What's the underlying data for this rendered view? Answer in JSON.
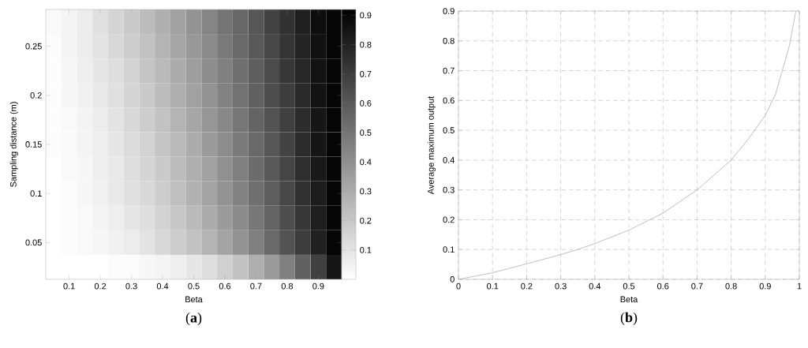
{
  "chart_data": [
    {
      "type": "heatmap",
      "title": "(**a**)",
      "xlabel": "Beta",
      "ylabel": "Sampling distance (m)",
      "categories": [
        null,
        "0.1",
        null,
        "0.2",
        null,
        "0.3",
        null,
        "0.4",
        null,
        "0.5",
        null,
        "0.6",
        null,
        "0.7",
        null,
        "0.8",
        null,
        "0.9",
        null
      ],
      "y_categories": [
        null,
        "0.25",
        null,
        "0.2",
        null,
        "0.15",
        null,
        "0.1",
        null,
        "0.05",
        null
      ],
      "cells": [
        [
          0.02,
          0.04,
          0.07,
          0.11,
          0.15,
          0.19,
          0.24,
          0.29,
          0.34,
          0.39,
          0.44,
          0.5,
          0.55,
          0.61,
          0.68,
          0.74,
          0.8,
          0.87,
          0.9
        ],
        [
          0.01,
          0.04,
          0.07,
          0.1,
          0.14,
          0.18,
          0.22,
          0.27,
          0.32,
          0.37,
          0.42,
          0.48,
          0.54,
          0.6,
          0.66,
          0.73,
          0.79,
          0.86,
          0.9
        ],
        [
          0.01,
          0.03,
          0.06,
          0.09,
          0.12,
          0.16,
          0.21,
          0.25,
          0.3,
          0.35,
          0.41,
          0.46,
          0.52,
          0.58,
          0.65,
          0.72,
          0.78,
          0.85,
          0.9
        ],
        [
          0.01,
          0.03,
          0.05,
          0.08,
          0.11,
          0.15,
          0.19,
          0.24,
          0.29,
          0.34,
          0.39,
          0.45,
          0.51,
          0.57,
          0.64,
          0.7,
          0.77,
          0.85,
          0.9
        ],
        [
          0.01,
          0.02,
          0.04,
          0.07,
          0.1,
          0.14,
          0.18,
          0.22,
          0.27,
          0.32,
          0.38,
          0.43,
          0.49,
          0.56,
          0.62,
          0.69,
          0.76,
          0.84,
          0.9
        ],
        [
          0.01,
          0.02,
          0.04,
          0.06,
          0.09,
          0.13,
          0.16,
          0.21,
          0.25,
          0.3,
          0.36,
          0.41,
          0.48,
          0.54,
          0.61,
          0.68,
          0.76,
          0.84,
          0.9
        ],
        [
          0,
          0.02,
          0.03,
          0.06,
          0.08,
          0.12,
          0.15,
          0.19,
          0.24,
          0.29,
          0.34,
          0.4,
          0.46,
          0.53,
          0.6,
          0.67,
          0.75,
          0.83,
          0.9
        ],
        [
          0,
          0.01,
          0.03,
          0.05,
          0.08,
          0.11,
          0.14,
          0.18,
          0.23,
          0.28,
          0.33,
          0.39,
          0.45,
          0.52,
          0.58,
          0.66,
          0.74,
          0.82,
          0.9
        ],
        [
          0,
          0.01,
          0.02,
          0.04,
          0.06,
          0.09,
          0.12,
          0.16,
          0.2,
          0.25,
          0.3,
          0.36,
          0.42,
          0.49,
          0.56,
          0.64,
          0.72,
          0.81,
          0.9
        ],
        [
          0,
          0.01,
          0.02,
          0.03,
          0.05,
          0.07,
          0.1,
          0.14,
          0.18,
          0.22,
          0.27,
          0.33,
          0.39,
          0.46,
          0.54,
          0.62,
          0.7,
          0.8,
          0.9
        ],
        [
          0,
          0,
          0,
          0,
          0.01,
          0.01,
          0.03,
          0.04,
          0.06,
          0.09,
          0.12,
          0.17,
          0.22,
          0.29,
          0.36,
          0.46,
          0.57,
          0.69,
          0.84
        ]
      ],
      "clim": [
        0,
        0.92
      ],
      "cticks": [
        0.1,
        0.2,
        0.3,
        0.4,
        0.5,
        0.6,
        0.7,
        0.8,
        0.9
      ]
    },
    {
      "type": "line",
      "title": "(**b**)",
      "xlabel": "Beta",
      "ylabel": "Average maximum output",
      "x": [
        0,
        0.1,
        0.2,
        0.3,
        0.35,
        0.4,
        0.5,
        0.6,
        0.7,
        0.8,
        0.85,
        0.9,
        0.93,
        0.95,
        0.97,
        0.98,
        0.99
      ],
      "values": [
        0,
        0.022,
        0.052,
        0.083,
        0.1,
        0.12,
        0.165,
        0.222,
        0.3,
        0.4,
        0.47,
        0.55,
        0.62,
        0.7,
        0.78,
        0.84,
        0.9
      ],
      "color": "#b0b0b0",
      "grid": true,
      "xlim": [
        0,
        1
      ],
      "ylim": [
        0,
        0.9
      ],
      "xticks": [
        0,
        0.1,
        0.2,
        0.3,
        0.4,
        0.5,
        0.6,
        0.7,
        0.8,
        0.9,
        1
      ],
      "yticks": [
        0,
        0.1,
        0.2,
        0.3,
        0.4,
        0.5,
        0.6,
        0.7,
        0.8,
        0.9
      ]
    }
  ]
}
